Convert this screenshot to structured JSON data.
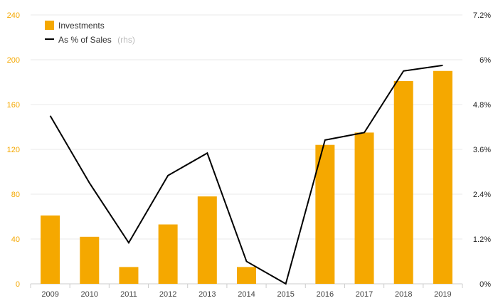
{
  "chart_data": {
    "type": "bar+line",
    "categories": [
      "2009",
      "2010",
      "2011",
      "2012",
      "2013",
      "2014",
      "2015",
      "2016",
      "2017",
      "2018",
      "2019"
    ],
    "series": [
      {
        "name": "Investments",
        "type": "bar",
        "axis": "left",
        "color": "#f5a800",
        "values": [
          61,
          42,
          15,
          53,
          78,
          15,
          0,
          124,
          135,
          181,
          190
        ]
      },
      {
        "name": "As % of Sales",
        "name_suffix": "(rhs)",
        "type": "line",
        "axis": "right",
        "color": "#000000",
        "values": [
          4.5,
          2.7,
          1.1,
          2.9,
          3.5,
          0.6,
          0.0,
          3.85,
          4.05,
          5.7,
          5.85
        ]
      }
    ],
    "y_left": {
      "min": 0,
      "max": 240,
      "ticks": [
        "0",
        "40",
        "80",
        "120",
        "160",
        "200",
        "240"
      ],
      "color": "#f5a800"
    },
    "y_right": {
      "min": 0,
      "max": 7.2,
      "ticks": [
        "0%",
        "1.2%",
        "2.4%",
        "3.6%",
        "4.8%",
        "6%",
        "7.2%"
      ]
    },
    "grid": true,
    "legend_position": "top-left"
  }
}
